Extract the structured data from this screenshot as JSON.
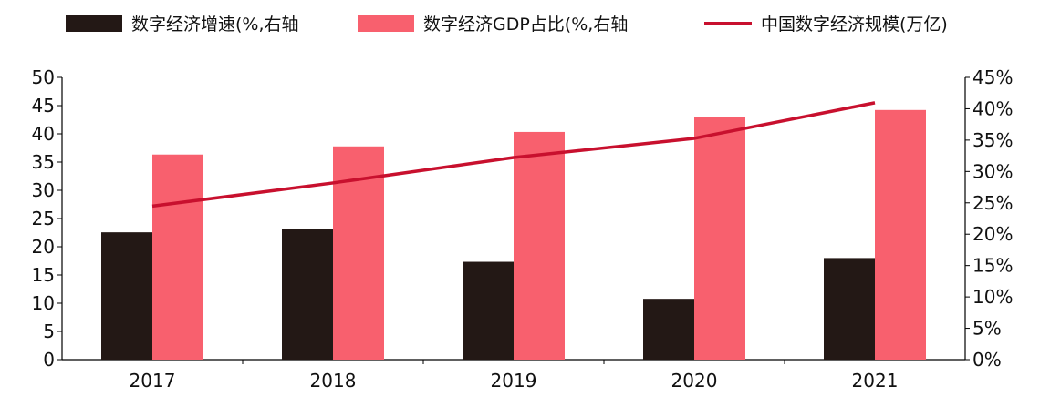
{
  "chart_data": {
    "type": "bar+line",
    "categories": [
      "2017",
      "2018",
      "2019",
      "2020",
      "2021"
    ],
    "series": [
      {
        "name": "数字经济增速(%,右轴",
        "kind": "bar",
        "axis": "right",
        "color": "#231815",
        "values": [
          20.3,
          20.9,
          15.6,
          9.7,
          16.2
        ]
      },
      {
        "name": "数字经济GDP占比(%,右轴",
        "kind": "bar",
        "axis": "right",
        "color": "#f8606e",
        "values": [
          32.7,
          34.0,
          36.3,
          38.7,
          39.8
        ]
      },
      {
        "name": "中国数字经济规模(万亿)",
        "kind": "line",
        "axis": "left",
        "color": "#c8102e",
        "values": [
          27.2,
          31.3,
          35.8,
          39.2,
          45.5
        ]
      }
    ],
    "left_axis": {
      "min": 0,
      "max": 50,
      "step": 5,
      "ticks": [
        "0",
        "5",
        "10",
        "15",
        "20",
        "25",
        "30",
        "35",
        "40",
        "45",
        "50"
      ]
    },
    "right_axis": {
      "min": 0,
      "max": 45,
      "step": 5,
      "ticks": [
        "0%",
        "5%",
        "10%",
        "15%",
        "20%",
        "25%",
        "30%",
        "35%",
        "40%",
        "45%"
      ]
    },
    "legend_position": "top"
  },
  "legend": {
    "item1": "数字经济增速(%,右轴",
    "item2": "数字经济GDP占比(%,右轴",
    "item3": "中国数字经济规模(万亿)"
  }
}
